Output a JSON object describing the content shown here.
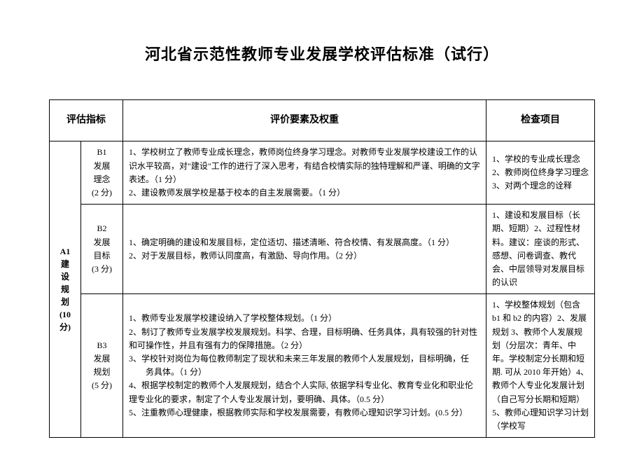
{
  "title": "河北省示范性教师专业发展学校评估标准（试行）",
  "headers": {
    "col1": "评估指标",
    "col2": "评价要素及权重",
    "col3": "检查项目"
  },
  "mainIndicator": {
    "code": "A1",
    "nameLine1": "建",
    "nameLine2": "设",
    "nameLine3": "规",
    "nameLine4": "划",
    "score": "(10 分)"
  },
  "rows": [
    {
      "sub": {
        "code": "B1",
        "name1": "发展",
        "name2": "理念",
        "score": "(2 分)"
      },
      "elements": "1、学校树立了教师专业成长理念，教师岗位终身学习理念。对教师专业发展学校建设工作的认识水平较高，对\"建设\"工作的进行了深入思考，有结合校情实际的独特理解和严谨、明确的文字表述。（1 分）\n2、建设教师发展学校是基于校本的自主发展需要。（1 分）",
      "check": "1、学校的专业成长理念 2、教师岗位终身学习理念 3、对两个理念的诠释"
    },
    {
      "sub": {
        "code": "B2",
        "name1": "发展",
        "name2": "目标",
        "score": "(3 分)"
      },
      "elements": "1、确定明确的建设和发展目标，定位适切、描述清晰、符合校情、有发展高度。（1 分）\n2、对于发展目标，教师认同度高，有激励、导向作用。（2 分）",
      "check": "1、建设和发展目标（长期、短期）2、过程性材料。建议：座谈的形式、感想、问卷调查、教代会、中层领导对发展目标的认识"
    },
    {
      "sub": {
        "code": "B3",
        "name1": "发展",
        "name2": "规划",
        "score": "(5 分)"
      },
      "elementsLines": [
        "1、教师专业发展学校建设纳入了学校整体规划。（1 分）",
        "2、制订了教师专业发展学校发展规划。科学、合理，目标明确、任务具体，具有较强的针对性和可操作性，并且有强有力的保障措施。（2 分）",
        "3、学校针对岗位为每位教师制定了现状和未来三年发展的教师个人发展规划，目标明确，任",
        "务具体。（1 分）",
        "4、根据学校制定的教师个人发展规划，结合个人实际, 依据学科专业化、教育专业化和职业伦理专业化的要求，制定了个人专业发展计划，要明确、具体。（0.5 分）",
        "5、注重教师心理健康，根据教师实际和学校发展需要，有教师心理知识学习计划。(0.5 分）"
      ],
      "check": "1、学校整体规划（包含 b1 和 b2 的内容）2、发展规划 3、教师个人发展规划（分层次：青年、中年。学校制定分长期和短期. 可从 2010 年开始）4、教师个人专业化发展计划（自己写分长期和短期）5、教师心理知识学习计划（学校写"
    }
  ]
}
